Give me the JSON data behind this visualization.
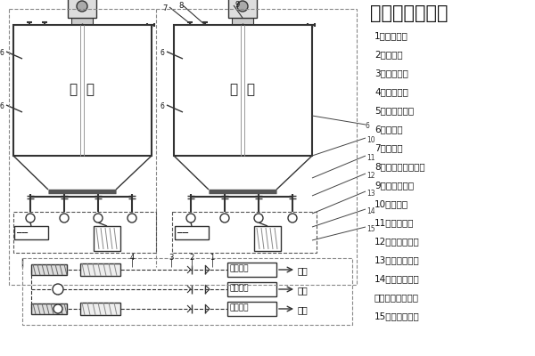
{
  "title": "灰库系统流程图",
  "title_fontsize": 16,
  "legend_items": [
    "1、罗茨风机",
    "2、止回阀",
    "3、气动蝶阀",
    "4、电加热器",
    "5、双轴搅拌机",
    "6、料位计",
    "7、检修门",
    "8、压力真空释放阀",
    "9、布袋除尘器",
    "10、气化槽",
    "11、手动闸阀",
    "12、手动插板阀",
    "13、电动给料机",
    "14、气动插板阀",
    "（或电动插板阀）",
    "15、汽车散装机"
  ],
  "bg_color": "#ffffff",
  "line_color": "#333333",
  "dash_color": "#555555",
  "label_color": "#111111",
  "silo_label": "灰  库",
  "daqi": "大气"
}
